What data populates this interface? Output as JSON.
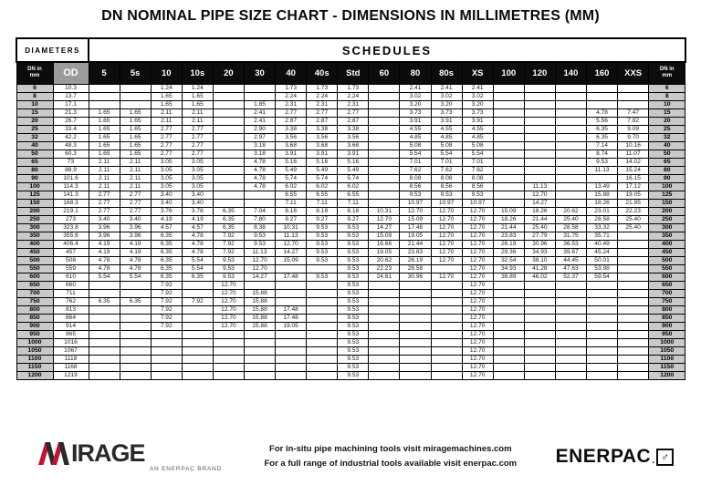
{
  "title": "DN NOMINAL PIPE SIZE CHART - DIMENSIONS IN MILLIMETRES (MM)",
  "colors": {
    "header_bg": "#0c0c0c",
    "od_header_bg": "#9b9b9b",
    "dn_cell_bg": "#c9c9c9",
    "brand_red": "#c41230",
    "logo_dark": "#2a2a2d"
  },
  "table": {
    "diameters_label": "DIAMETERS",
    "schedules_label": "SCHEDULES",
    "dn_header_line1": "DN in",
    "dn_header_line2": "mm",
    "od_header": "OD",
    "schedule_headers": [
      "5",
      "5s",
      "10",
      "10s",
      "20",
      "30",
      "40",
      "40s",
      "Std",
      "60",
      "80",
      "80s",
      "XS",
      "100",
      "120",
      "140",
      "160",
      "XXS"
    ],
    "rows": [
      {
        "dn": "6",
        "od": "10.3",
        "v": [
          "",
          "",
          "1.24",
          "1.24",
          "",
          "",
          "1.73",
          "1.73",
          "1.73",
          "",
          "2.41",
          "2.41",
          "2.41",
          "",
          "",
          "",
          "",
          ""
        ]
      },
      {
        "dn": "8",
        "od": "13.7",
        "v": [
          "",
          "",
          "1.65",
          "1.65",
          "",
          "",
          "2.24",
          "2.24",
          "2.24",
          "",
          "3.02",
          "3.02",
          "3.02",
          "",
          "",
          "",
          "",
          ""
        ]
      },
      {
        "dn": "10",
        "od": "17.1",
        "v": [
          "",
          "",
          "1.65",
          "1.65",
          "",
          "1.85",
          "2.31",
          "2.31",
          "2.31",
          "",
          "3.20",
          "3.20",
          "3.20",
          "",
          "",
          "",
          "",
          ""
        ]
      },
      {
        "dn": "15",
        "od": "21.3",
        "v": [
          "1.65",
          "1.65",
          "2.11",
          "2.11",
          "",
          "2.41",
          "2.77",
          "2.77",
          "2.77",
          "",
          "3.73",
          "3.73",
          "3.73",
          "",
          "",
          "",
          "4.78",
          "7.47"
        ]
      },
      {
        "dn": "20",
        "od": "26.7",
        "v": [
          "1.65",
          "1.65",
          "2.11",
          "2.11",
          "",
          "2.41",
          "2.87",
          "2.87",
          "2.87",
          "",
          "3.91",
          "3.91",
          "3.91",
          "",
          "",
          "",
          "5.56",
          "7.82"
        ]
      },
      {
        "dn": "25",
        "od": "33.4",
        "v": [
          "1.65",
          "1.65",
          "2.77",
          "2.77",
          "",
          "2.90",
          "3.38",
          "3.38",
          "3.38",
          "",
          "4.55",
          "4.55",
          "4.55",
          "",
          "",
          "",
          "6.35",
          "9.09"
        ]
      },
      {
        "dn": "32",
        "od": "42.2",
        "v": [
          "1.65",
          "1.65",
          "2.77",
          "2.77",
          "",
          "2.97",
          "3.56",
          "3.56",
          "3.56",
          "",
          "4.85",
          "4.85",
          "4.85",
          "",
          "",
          "",
          "6.35",
          "9.70"
        ]
      },
      {
        "dn": "40",
        "od": "48.3",
        "v": [
          "1.65",
          "1.65",
          "2.77",
          "2.77",
          "",
          "3.18",
          "3.68",
          "3.68",
          "3.68",
          "",
          "5.08",
          "5.08",
          "5.08",
          "",
          "",
          "",
          "7.14",
          "10.16"
        ]
      },
      {
        "dn": "50",
        "od": "60.3",
        "v": [
          "1.65",
          "1.65",
          "2.77",
          "2.77",
          "",
          "3.18",
          "3.91",
          "3.91",
          "3.91",
          "",
          "5.54",
          "5.54",
          "5.54",
          "",
          "",
          "",
          "8.74",
          "11.07"
        ]
      },
      {
        "dn": "65",
        "od": "73",
        "v": [
          "2.11",
          "2.11",
          "3.05",
          "3.05",
          "",
          "4.78",
          "5.16",
          "5.16",
          "5.16",
          "",
          "7.01",
          "7.01",
          "7.01",
          "",
          "",
          "",
          "9.53",
          "14.02"
        ]
      },
      {
        "dn": "80",
        "od": "88.9",
        "v": [
          "2.11",
          "2.11",
          "3.05",
          "3.05",
          "",
          "4.78",
          "5.49",
          "5.49",
          "5.49",
          "",
          "7.62",
          "7.62",
          "7.62",
          "",
          "",
          "",
          "11.13",
          "15.24"
        ]
      },
      {
        "dn": "90",
        "od": "101.6",
        "v": [
          "2.11",
          "2.11",
          "3.05",
          "3.05",
          "",
          "4.78",
          "5.74",
          "5.74",
          "5.74",
          "",
          "8.08",
          "8.08",
          "8.08",
          "",
          "",
          "",
          "",
          "16.15"
        ]
      },
      {
        "dn": "100",
        "od": "114.3",
        "v": [
          "2.11",
          "2.11",
          "3.05",
          "3.05",
          "",
          "4.78",
          "6.02",
          "6.02",
          "6.02",
          "",
          "8.56",
          "8.56",
          "8.56",
          "",
          "11.13",
          "",
          "13.49",
          "17.12"
        ]
      },
      {
        "dn": "125",
        "od": "141.3",
        "v": [
          "2.77",
          "2.77",
          "3.40",
          "3.40",
          "",
          "",
          "6.55",
          "6.55",
          "6.55",
          "",
          "9.53",
          "9.53",
          "9.53",
          "",
          "12.70",
          "",
          "15.88",
          "19.05"
        ]
      },
      {
        "dn": "150",
        "od": "168.3",
        "v": [
          "2.77",
          "2.77",
          "3.40",
          "3.40",
          "",
          "",
          "7.11",
          "7.11",
          "7.11",
          "",
          "10.97",
          "10.97",
          "10.97",
          "",
          "14.27",
          "",
          "18.26",
          "21.95"
        ]
      },
      {
        "dn": "200",
        "od": "219.1",
        "v": [
          "2.77",
          "2.77",
          "3.76",
          "3.76",
          "6.35",
          "7.04",
          "8.18",
          "8.18",
          "8.18",
          "10.31",
          "12.70",
          "12.70",
          "12.70",
          "15.09",
          "18.26",
          "20.62",
          "23.01",
          "22.23"
        ]
      },
      {
        "dn": "250",
        "od": "273",
        "v": [
          "3.40",
          "3.40",
          "4.19",
          "4.19",
          "6.35",
          "7.80",
          "9.27",
          "9.27",
          "9.27",
          "12.70",
          "15.09",
          "12.70",
          "12.70",
          "18.26",
          "21.44",
          "25.40",
          "28.58",
          "25.40"
        ]
      },
      {
        "dn": "300",
        "od": "323.8",
        "v": [
          "3.96",
          "3.96",
          "4.57",
          "4.57",
          "6.35",
          "8.38",
          "10.31",
          "9.53",
          "9.53",
          "14.27",
          "17.48",
          "12.70",
          "12.70",
          "21.44",
          "25.40",
          "28.58",
          "33.32",
          "25.40"
        ]
      },
      {
        "dn": "350",
        "od": "355.6",
        "v": [
          "3.96",
          "3.96",
          "6.35",
          "4.78",
          "7.92",
          "9.53",
          "11.13",
          "9.53",
          "9.53",
          "15.09",
          "19.05",
          "12.70",
          "12.70",
          "23.83",
          "27.79",
          "31.75",
          "35.71",
          ""
        ]
      },
      {
        "dn": "400",
        "od": "406.4",
        "v": [
          "4.19",
          "4.19",
          "6.35",
          "4.78",
          "7.92",
          "9.53",
          "12.70",
          "9.53",
          "9.53",
          "16.66",
          "21.44",
          "12.70",
          "12.70",
          "26.19",
          "30.96",
          "36.53",
          "40.49",
          ""
        ]
      },
      {
        "dn": "450",
        "od": "457",
        "v": [
          "4.19",
          "4.19",
          "6.35",
          "4.78",
          "7.92",
          "11.13",
          "14.27",
          "9.53",
          "9.53",
          "19.05",
          "23.83",
          "12.70",
          "12.70",
          "29.36",
          "34.93",
          "39.67",
          "45.24",
          ""
        ]
      },
      {
        "dn": "500",
        "od": "508",
        "v": [
          "4.78",
          "4.78",
          "6.35",
          "5.54",
          "9.53",
          "12.70",
          "15.09",
          "9.53",
          "9.53",
          "20.62",
          "26.19",
          "12.70",
          "12.70",
          "32.54",
          "38.10",
          "44.45",
          "50.01",
          ""
        ]
      },
      {
        "dn": "550",
        "od": "559",
        "v": [
          "4.78",
          "4.78",
          "6.35",
          "5.54",
          "9.53",
          "12.70",
          "",
          "",
          "9.53",
          "22.23",
          "28.58",
          "",
          "12.70",
          "34.93",
          "41.28",
          "47.63",
          "53.98",
          ""
        ]
      },
      {
        "dn": "600",
        "od": "610",
        "v": [
          "5.54",
          "5.54",
          "6.35",
          "6.35",
          "9.53",
          "14.27",
          "17.48",
          "9.53",
          "9.53",
          "24.61",
          "30.96",
          "12.70",
          "12.70",
          "38.89",
          "46.02",
          "52.37",
          "59.54",
          ""
        ]
      },
      {
        "dn": "650",
        "od": "660",
        "v": [
          "",
          "",
          "7.92",
          "",
          "12.70",
          "",
          "",
          "",
          "9.53",
          "",
          "",
          "",
          "12.70",
          "",
          "",
          "",
          "",
          ""
        ]
      },
      {
        "dn": "700",
        "od": "711",
        "v": [
          "",
          "",
          "7.92",
          "",
          "12.70",
          "15.88",
          "",
          "",
          "9.53",
          "",
          "",
          "",
          "12.70",
          "",
          "",
          "",
          "",
          ""
        ]
      },
      {
        "dn": "750",
        "od": "762",
        "v": [
          "6.35",
          "6.35",
          "7.92",
          "7.92",
          "12.70",
          "15.88",
          "",
          "",
          "9.53",
          "",
          "",
          "",
          "12.70",
          "",
          "",
          "",
          "",
          ""
        ]
      },
      {
        "dn": "800",
        "od": "813",
        "v": [
          "",
          "",
          "7.92",
          "",
          "12.70",
          "15.88",
          "17.48",
          "",
          "9.53",
          "",
          "",
          "",
          "12.70",
          "",
          "",
          "",
          "",
          ""
        ]
      },
      {
        "dn": "850",
        "od": "864",
        "v": [
          "",
          "",
          "7.92",
          "",
          "12.70",
          "15.88",
          "17.48",
          "",
          "9.53",
          "",
          "",
          "",
          "12.70",
          "",
          "",
          "",
          "",
          ""
        ]
      },
      {
        "dn": "900",
        "od": "914",
        "v": [
          "",
          "",
          "7.92",
          "",
          "12.70",
          "15.88",
          "19.05",
          "",
          "9.53",
          "",
          "",
          "",
          "12.70",
          "",
          "",
          "",
          "",
          ""
        ]
      },
      {
        "dn": "950",
        "od": "965",
        "v": [
          "",
          "",
          "",
          "",
          "",
          "",
          "",
          "",
          "9.53",
          "",
          "",
          "",
          "12.70",
          "",
          "",
          "",
          "",
          ""
        ]
      },
      {
        "dn": "1000",
        "od": "1016",
        "v": [
          "",
          "",
          "",
          "",
          "",
          "",
          "",
          "",
          "9.53",
          "",
          "",
          "",
          "12.70",
          "",
          "",
          "",
          "",
          ""
        ]
      },
      {
        "dn": "1050",
        "od": "1067",
        "v": [
          "",
          "",
          "",
          "",
          "",
          "",
          "",
          "",
          "9.53",
          "",
          "",
          "",
          "12.70",
          "",
          "",
          "",
          "",
          ""
        ]
      },
      {
        "dn": "1100",
        "od": "1118",
        "v": [
          "",
          "",
          "",
          "",
          "",
          "",
          "",
          "",
          "9.53",
          "",
          "",
          "",
          "12.70",
          "",
          "",
          "",
          "",
          ""
        ]
      },
      {
        "dn": "1150",
        "od": "1168",
        "v": [
          "",
          "",
          "",
          "",
          "",
          "",
          "",
          "",
          "9.53",
          "",
          "",
          "",
          "12.70",
          "",
          "",
          "",
          "",
          ""
        ]
      },
      {
        "dn": "1200",
        "od": "1219",
        "v": [
          "",
          "",
          "",
          "",
          "",
          "",
          "",
          "",
          "9.53",
          "",
          "",
          "",
          "12.70",
          "",
          "",
          "",
          "",
          ""
        ]
      }
    ]
  },
  "footer": {
    "mirage_m": "M",
    "mirage_rest": "IRAGE",
    "mirage_sub": "AN ENERPAC BRAND",
    "line1": "For in-situ pipe machining tools visit miragemachines.com",
    "line2": "For a full range of industrial tools available visit enerpac.com",
    "enerpac_word": "ENERPAC",
    "enerpac_dot": ".",
    "enerpac_symbol": "♂"
  }
}
